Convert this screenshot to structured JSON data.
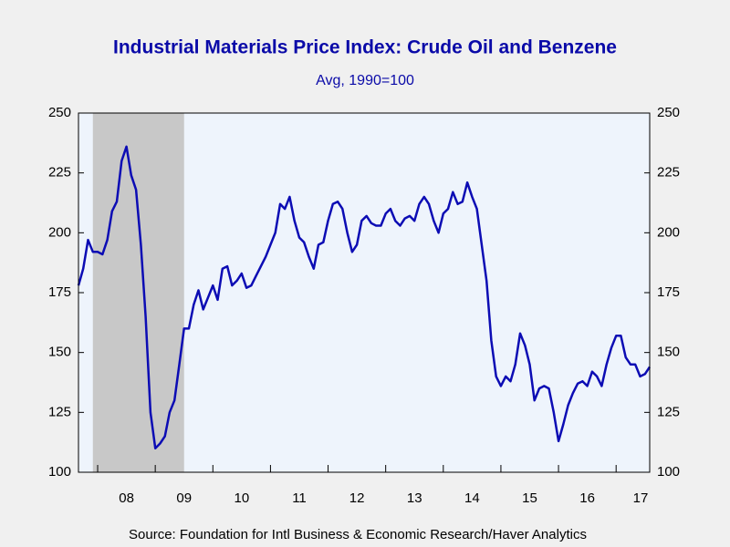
{
  "chart_data": {
    "type": "line",
    "title": "Industrial Materials Price Index: Crude Oil and Benzene",
    "subtitle": "Avg, 1990=100",
    "source": "Source:  Foundation for Intl Business & Economic Research/Haver Analytics",
    "x": [
      2007.667,
      2007.75,
      2007.833,
      2007.917,
      2008,
      2008.083,
      2008.167,
      2008.25,
      2008.333,
      2008.417,
      2008.5,
      2008.583,
      2008.667,
      2008.75,
      2008.833,
      2008.917,
      2009,
      2009.083,
      2009.167,
      2009.25,
      2009.333,
      2009.417,
      2009.5,
      2009.583,
      2009.667,
      2009.75,
      2009.833,
      2009.917,
      2010,
      2010.083,
      2010.167,
      2010.25,
      2010.333,
      2010.417,
      2010.5,
      2010.583,
      2010.667,
      2010.75,
      2010.833,
      2010.917,
      2011,
      2011.083,
      2011.167,
      2011.25,
      2011.333,
      2011.417,
      2011.5,
      2011.583,
      2011.667,
      2011.75,
      2011.833,
      2011.917,
      2012,
      2012.083,
      2012.167,
      2012.25,
      2012.333,
      2012.417,
      2012.5,
      2012.583,
      2012.667,
      2012.75,
      2012.833,
      2012.917,
      2013,
      2013.083,
      2013.167,
      2013.25,
      2013.333,
      2013.417,
      2013.5,
      2013.583,
      2013.667,
      2013.75,
      2013.833,
      2013.917,
      2014,
      2014.083,
      2014.167,
      2014.25,
      2014.333,
      2014.417,
      2014.5,
      2014.583,
      2014.667,
      2014.75,
      2014.833,
      2014.917,
      2015,
      2015.083,
      2015.167,
      2015.25,
      2015.333,
      2015.417,
      2015.5,
      2015.583,
      2015.667,
      2015.75,
      2015.833,
      2015.917,
      2016,
      2016.083,
      2016.167,
      2016.25,
      2016.333,
      2016.417,
      2016.5,
      2016.583,
      2016.667,
      2016.75,
      2016.833,
      2016.917,
      2017,
      2017.083,
      2017.167,
      2017.25,
      2017.333,
      2017.417,
      2017.5,
      2017.583
    ],
    "series": [
      {
        "color": "#0c0cb4",
        "values": [
          178,
          185,
          197,
          192,
          192,
          191,
          197,
          209,
          213,
          230,
          236,
          224,
          218,
          195,
          165,
          125,
          110,
          112,
          115,
          125,
          130,
          145,
          160,
          160,
          170,
          176,
          168,
          173,
          178,
          172,
          185,
          186,
          178,
          180,
          183,
          177,
          178,
          182,
          186,
          190,
          195,
          200,
          212,
          210,
          215,
          205,
          198,
          196,
          190,
          185,
          195,
          196,
          205,
          212,
          213,
          210,
          200,
          192,
          195,
          205,
          207,
          204,
          203,
          203,
          208,
          210,
          205,
          203,
          206,
          207,
          205,
          212,
          215,
          212,
          205,
          200,
          208,
          210,
          217,
          212,
          213,
          221,
          215,
          210,
          195,
          180,
          155,
          140,
          136,
          140,
          138,
          145,
          158,
          153,
          145,
          130,
          135,
          136,
          135,
          125,
          113,
          120,
          128,
          133,
          137,
          138,
          136,
          142,
          140,
          136,
          145,
          152,
          157,
          157,
          148,
          145,
          145,
          140,
          141,
          144
        ]
      }
    ],
    "xlim": [
      2007.667,
      2017.583
    ],
    "xticks": [
      {
        "value": 2008,
        "label": "08"
      },
      {
        "value": 2009,
        "label": "09"
      },
      {
        "value": 2010,
        "label": "10"
      },
      {
        "value": 2011,
        "label": "11"
      },
      {
        "value": 2012,
        "label": "12"
      },
      {
        "value": 2013,
        "label": "13"
      },
      {
        "value": 2014,
        "label": "14"
      },
      {
        "value": 2015,
        "label": "15"
      },
      {
        "value": 2016,
        "label": "16"
      },
      {
        "value": 2017,
        "label": "17"
      }
    ],
    "ylim": [
      100,
      250
    ],
    "yticks": [
      100,
      125,
      150,
      175,
      200,
      225,
      250
    ],
    "y2lim": [
      100,
      250
    ],
    "y2ticks": [
      100,
      125,
      150,
      175,
      200,
      225,
      250
    ],
    "shade": [
      2007.917,
      2009.5
    ],
    "shade_color": "#c8c8c8",
    "plot_background": "#eef4fc"
  }
}
